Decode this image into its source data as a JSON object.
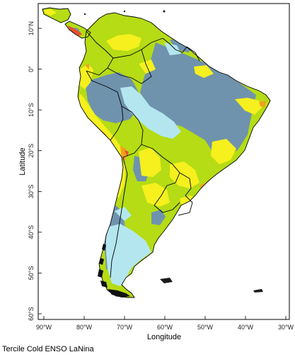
{
  "map": {
    "caption": "Tercile Cold ENSO LaNina",
    "xlabel": "Longitude",
    "ylabel": "Latitude",
    "lon_ticks": [
      "90°W",
      "80°W",
      "70°W",
      "60°W",
      "50°W",
      "40°W",
      "30°W"
    ],
    "lat_ticks": [
      "10°N",
      "0°",
      "10°S",
      "20°S",
      "30°S",
      "40°S",
      "50°S",
      "60°S"
    ],
    "colors": {
      "frame": "#000000",
      "steel_blue": "#6f93ad",
      "light_cyan": "#b4e6ef",
      "yellow_green": "#b5dc14",
      "yellow": "#f5f01e",
      "orange": "#f0a020",
      "red": "#e8502a",
      "border": "#000000"
    }
  }
}
